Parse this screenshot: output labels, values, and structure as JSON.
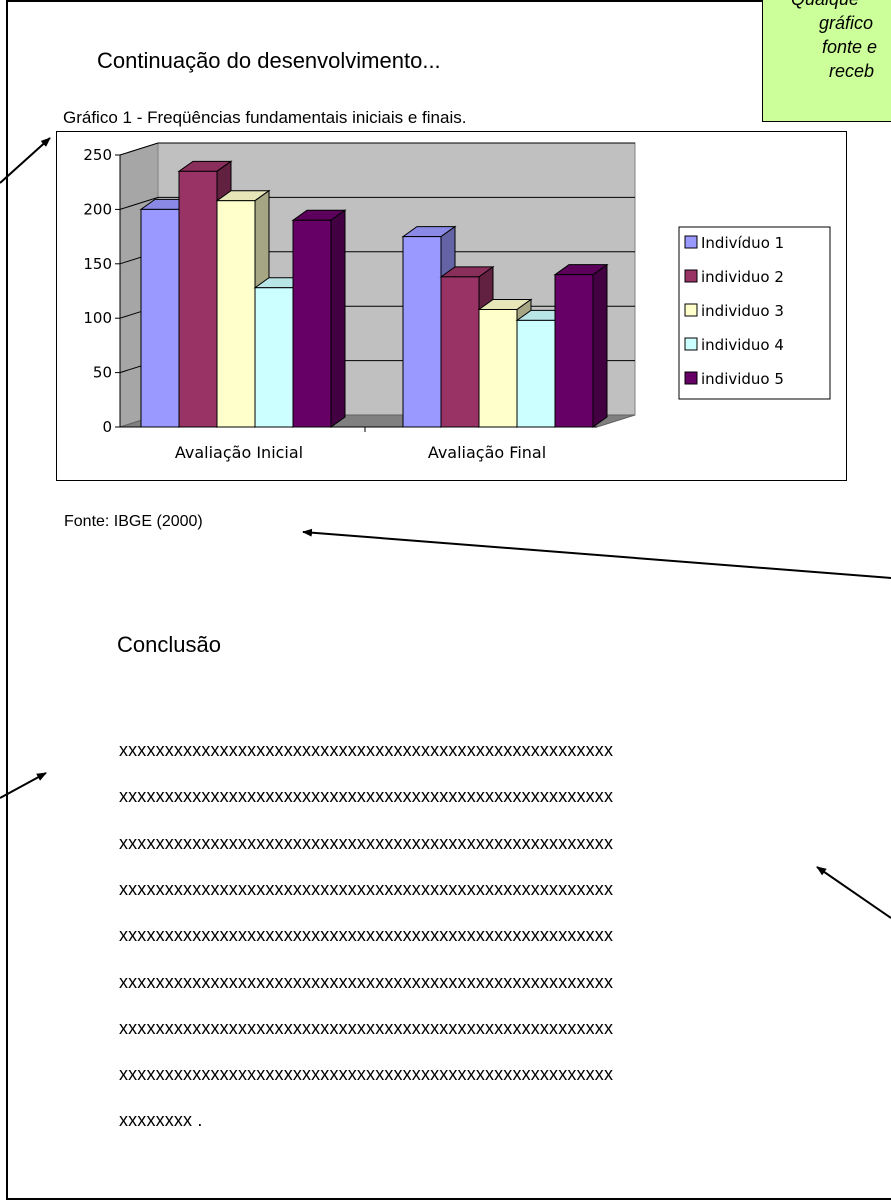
{
  "note": {
    "lines": [
      "Qualque",
      "gráfico",
      "fonte e",
      "receb"
    ]
  },
  "section_title": "Continuação do desenvolvimento...",
  "chart_caption": "Gráfico 1 - Freqüências fundamentais iniciais e finais.",
  "source_text": "Fonte: IBGE (2000)",
  "conclusion_title": "Conclusão",
  "body_lines": [
    "xxxxxxxxxxxxxxxxxxxxxxxxxxxxxxxxxxxxxxxxxxxxxxxxxxxxxx",
    "xxxxxxxxxxxxxxxxxxxxxxxxxxxxxxxxxxxxxxxxxxxxxxxxxxxxxx",
    "xxxxxxxxxxxxxxxxxxxxxxxxxxxxxxxxxxxxxxxxxxxxxxxxxxxxxx",
    "xxxxxxxxxxxxxxxxxxxxxxxxxxxxxxxxxxxxxxxxxxxxxxxxxxxxxx",
    "xxxxxxxxxxxxxxxxxxxxxxxxxxxxxxxxxxxxxxxxxxxxxxxxxxxxxx",
    "xxxxxxxxxxxxxxxxxxxxxxxxxxxxxxxxxxxxxxxxxxxxxxxxxxxxxx",
    "xxxxxxxxxxxxxxxxxxxxxxxxxxxxxxxxxxxxxxxxxxxxxxxxxxxxxx",
    "xxxxxxxxxxxxxxxxxxxxxxxxxxxxxxxxxxxxxxxxxxxxxxxxxxxxxx",
    "xxxxxxxx ."
  ],
  "colors": {
    "note_background": "#ccff99",
    "plot_wall": "#c0c0c0",
    "plot_floor": "#808080"
  },
  "chart_data": {
    "type": "bar",
    "title": "",
    "xlabel": "",
    "ylabel": "",
    "categories": [
      "Avaliação Inicial",
      "Avaliação Final"
    ],
    "y_ticks": [
      "0",
      "50",
      "100",
      "150",
      "200",
      "250"
    ],
    "ylim": [
      0,
      250
    ],
    "grid": true,
    "legend_position": "right",
    "style": "3d-clustered-column",
    "series": [
      {
        "name": "Indivíduo 1",
        "values": [
          200,
          175
        ],
        "color": "#9999ff"
      },
      {
        "name": "individuo 2",
        "values": [
          235,
          138
        ],
        "color": "#993366"
      },
      {
        "name": "individuo 3",
        "values": [
          208,
          108
        ],
        "color": "#ffffcc"
      },
      {
        "name": "individuo 4",
        "values": [
          128,
          98
        ],
        "color": "#ccffff"
      },
      {
        "name": "individuo 5",
        "values": [
          190,
          140
        ],
        "color": "#660066"
      }
    ]
  }
}
